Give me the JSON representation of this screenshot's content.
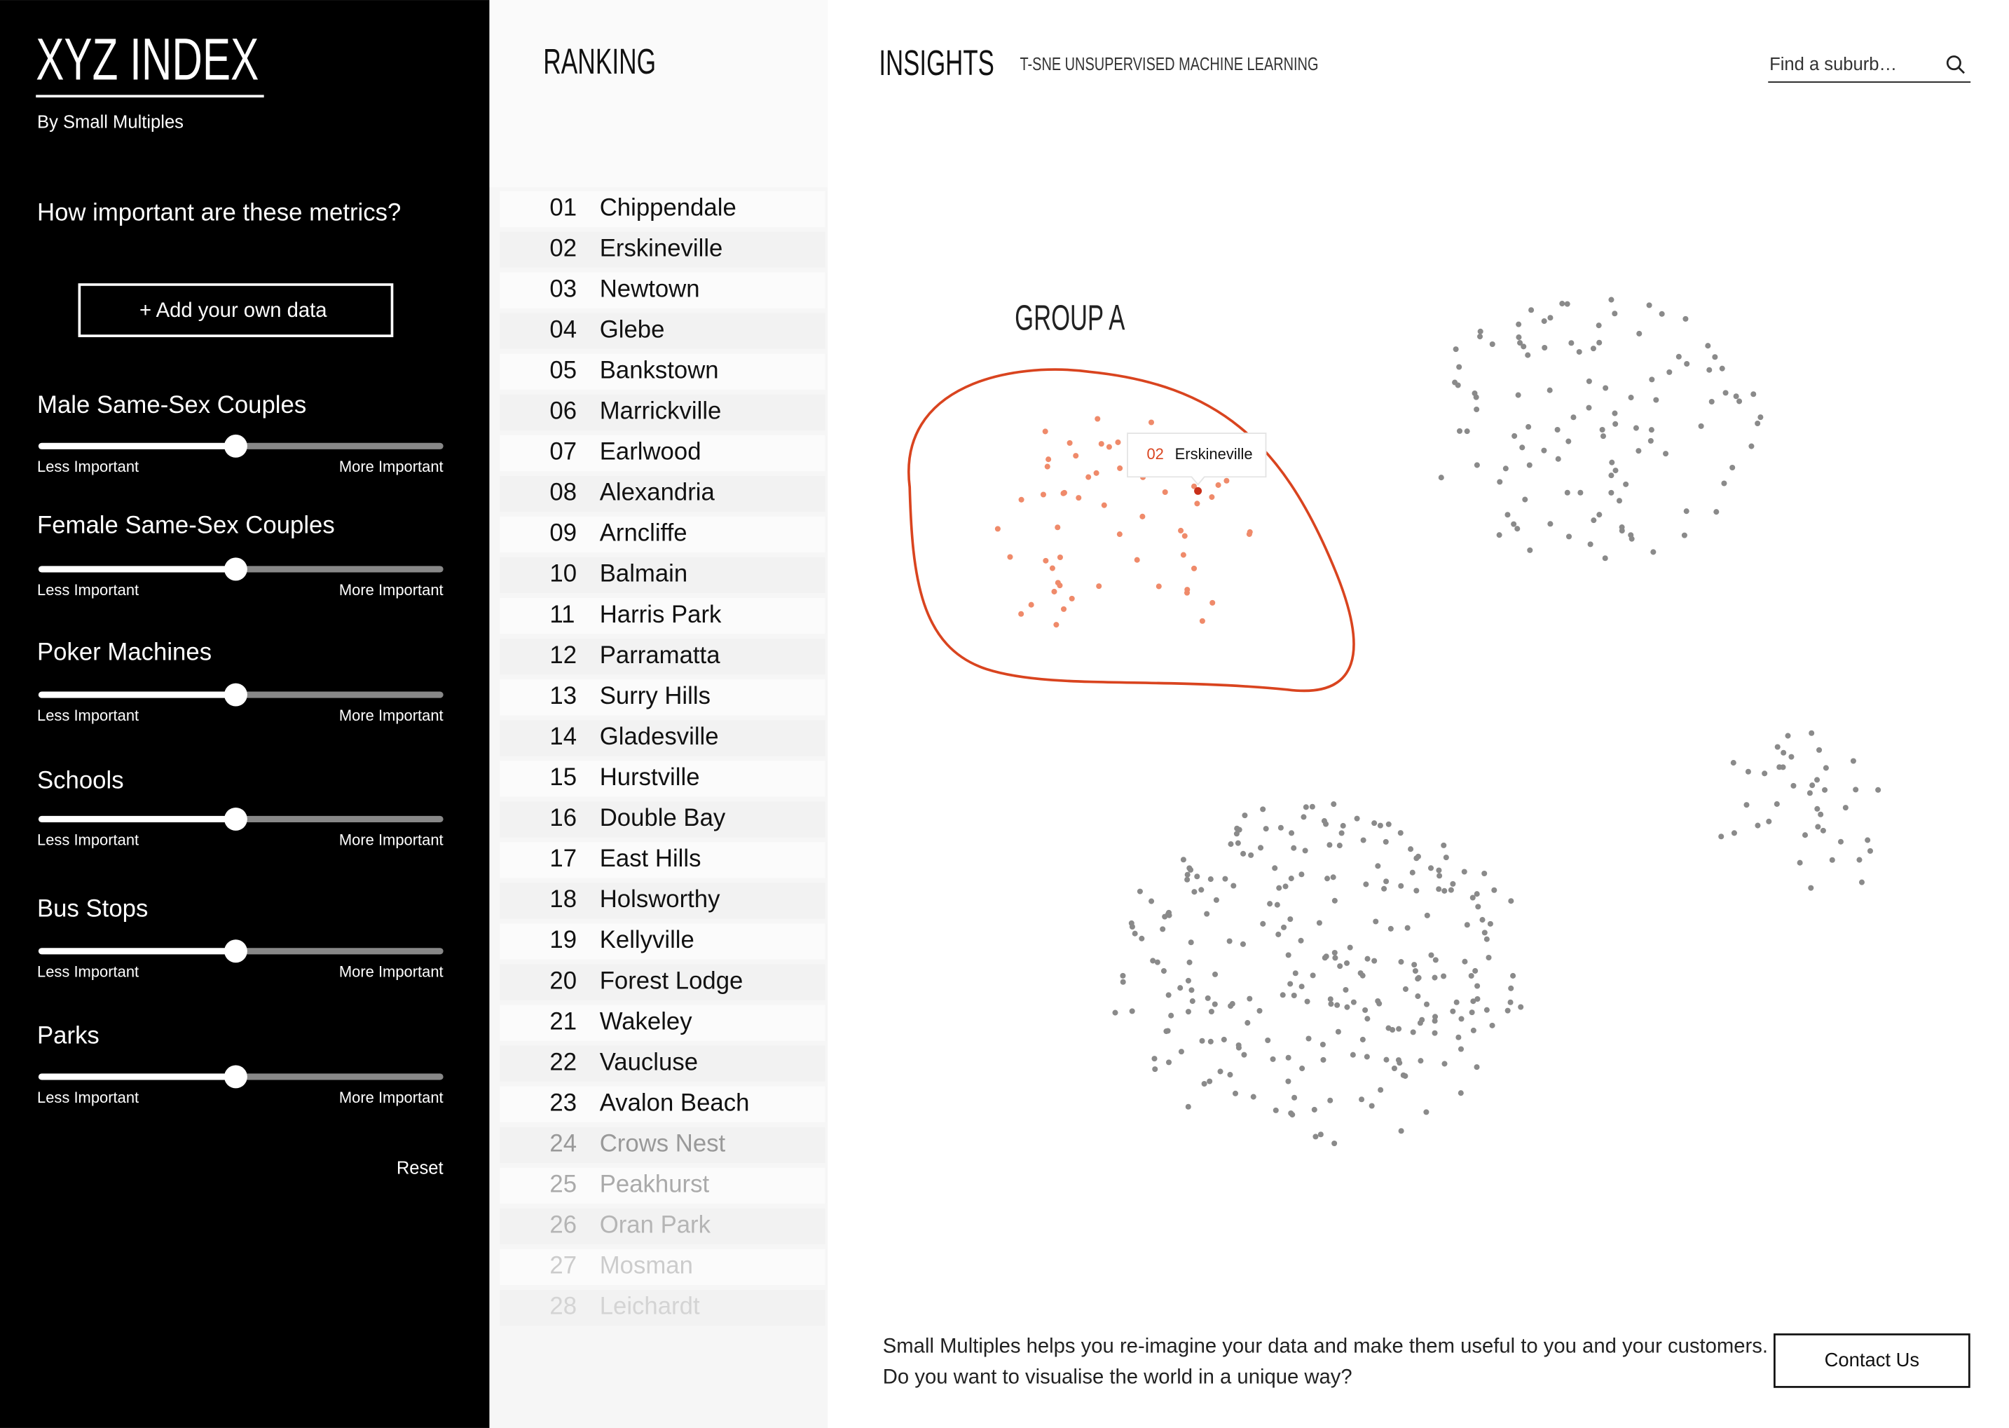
{
  "header": {
    "title": "XYZ INDEX",
    "byline": "By Small Multiples"
  },
  "metrics": {
    "question": "How important are these metrics?",
    "add_button": "+ Add your own data",
    "sliders": [
      {
        "label": "Male Same-Sex Couples",
        "low": "Less Important",
        "high": "More Important"
      },
      {
        "label": "Female Same-Sex Couples",
        "low": "Less Important",
        "high": "More Important"
      },
      {
        "label": "Poker Machines",
        "low": "Less Important",
        "high": "More Important"
      },
      {
        "label": "Schools",
        "low": "Less Important",
        "high": "More Important"
      },
      {
        "label": "Bus Stops",
        "low": "Less Important",
        "high": "More Important"
      },
      {
        "label": "Parks",
        "low": "Less Important",
        "high": "More Important"
      }
    ],
    "reset": "Reset"
  },
  "ranking": {
    "title": "RANKING",
    "items": [
      {
        "rank": "01",
        "name": "Chippendale"
      },
      {
        "rank": "02",
        "name": "Erskineville"
      },
      {
        "rank": "03",
        "name": "Newtown"
      },
      {
        "rank": "04",
        "name": "Glebe"
      },
      {
        "rank": "05",
        "name": "Bankstown"
      },
      {
        "rank": "06",
        "name": "Marrickville"
      },
      {
        "rank": "07",
        "name": "Earlwood"
      },
      {
        "rank": "08",
        "name": "Alexandria"
      },
      {
        "rank": "09",
        "name": "Arncliffe"
      },
      {
        "rank": "10",
        "name": "Balmain"
      },
      {
        "rank": "11",
        "name": "Harris Park"
      },
      {
        "rank": "12",
        "name": "Parramatta"
      },
      {
        "rank": "13",
        "name": "Surry Hills"
      },
      {
        "rank": "14",
        "name": "Gladesville"
      },
      {
        "rank": "15",
        "name": "Hurstville"
      },
      {
        "rank": "16",
        "name": "Double Bay"
      },
      {
        "rank": "17",
        "name": "East Hills"
      },
      {
        "rank": "18",
        "name": "Holsworthy"
      },
      {
        "rank": "19",
        "name": "Kellyville"
      },
      {
        "rank": "20",
        "name": "Forest Lodge"
      },
      {
        "rank": "21",
        "name": "Wakeley"
      },
      {
        "rank": "22",
        "name": "Vaucluse"
      },
      {
        "rank": "23",
        "name": "Avalon Beach"
      },
      {
        "rank": "24",
        "name": "Crows Nest"
      },
      {
        "rank": "25",
        "name": "Peakhurst"
      },
      {
        "rank": "26",
        "name": "Oran Park"
      },
      {
        "rank": "27",
        "name": "Mosman"
      },
      {
        "rank": "28",
        "name": "Leichardt"
      }
    ]
  },
  "insights": {
    "title": "INSIGHTS",
    "subtitle": "T-SNE UNSUPERVISED MACHINE LEARNING",
    "search_placeholder": "Find a suburb…",
    "group_label": "GROUP A",
    "tooltip": {
      "rank": "02",
      "name": "Erskineville"
    }
  },
  "footer": {
    "text_line1": "Small Multiples helps you re-imagine your data and make them useful to you and your customers.",
    "text_line2": "Do you want to visualise the world in a unique way?",
    "contact": "Contact Us"
  }
}
